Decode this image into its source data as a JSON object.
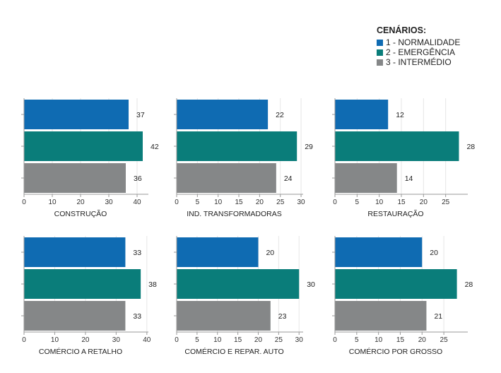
{
  "legend": {
    "title": "CENÁRIOS:",
    "items": [
      {
        "label": "1 - NORMALIDADE",
        "color": "#0f6bb2"
      },
      {
        "label": "2 - EMERGÊNCIA",
        "color": "#0a7d7a"
      },
      {
        "label": "3 - INTERMÉDIO",
        "color": "#858788"
      }
    ]
  },
  "chart_data": [
    {
      "type": "bar",
      "title": "CONSTRUÇÃO",
      "series": [
        {
          "name": "1 - NORMALIDADE",
          "values": [
            37
          ]
        },
        {
          "name": "2 - EMERGÊNCIA",
          "values": [
            42
          ]
        },
        {
          "name": "3 - INTERMÉDIO",
          "values": [
            36
          ]
        }
      ],
      "xlim": [
        0,
        44
      ],
      "xticks": [
        0,
        10,
        20,
        30,
        40
      ]
    },
    {
      "type": "bar",
      "title": "IND. TRANSFORMADORAS",
      "series": [
        {
          "name": "1 - NORMALIDADE",
          "values": [
            22
          ]
        },
        {
          "name": "2 - EMERGÊNCIA",
          "values": [
            29
          ]
        },
        {
          "name": "3 - INTERMÉDIO",
          "values": [
            24
          ]
        }
      ],
      "xlim": [
        0,
        30.5
      ],
      "xticks": [
        0,
        5,
        10,
        15,
        20,
        25,
        30
      ]
    },
    {
      "type": "bar",
      "title": "RESTAURAÇÃO",
      "series": [
        {
          "name": "1 - NORMALIDADE",
          "values": [
            12
          ]
        },
        {
          "name": "2 - EMERGÊNCIA",
          "values": [
            28
          ]
        },
        {
          "name": "3 - INTERMÉDIO",
          "values": [
            14
          ]
        }
      ],
      "xlim": [
        0,
        30
      ],
      "xticks": [
        0,
        5,
        10,
        15,
        20,
        25
      ]
    },
    {
      "type": "bar",
      "title": "COMÉRCIO A RETALHO",
      "series": [
        {
          "name": "1 - NORMALIDADE",
          "values": [
            33
          ]
        },
        {
          "name": "2 - EMERGÊNCIA",
          "values": [
            38
          ]
        },
        {
          "name": "3 - INTERMÉDIO",
          "values": [
            33
          ]
        }
      ],
      "xlim": [
        0,
        40.5
      ],
      "xticks": [
        0,
        10,
        20,
        30,
        40
      ]
    },
    {
      "type": "bar",
      "title": "COMÉRCIO E REPAR. AUTO",
      "series": [
        {
          "name": "1 - NORMALIDADE",
          "values": [
            20
          ]
        },
        {
          "name": "2 - EMERGÊNCIA",
          "values": [
            30
          ]
        },
        {
          "name": "3 - INTERMÉDIO",
          "values": [
            23
          ]
        }
      ],
      "xlim": [
        0,
        31
      ],
      "xticks": [
        0,
        5,
        10,
        15,
        20,
        25,
        30
      ]
    },
    {
      "type": "bar",
      "title": "COMÉRCIO POR GROSSO",
      "series": [
        {
          "name": "1 - NORMALIDADE",
          "values": [
            20
          ]
        },
        {
          "name": "2 - EMERGÊNCIA",
          "values": [
            28
          ]
        },
        {
          "name": "3 - INTERMÉDIO",
          "values": [
            21
          ]
        }
      ],
      "xlim": [
        0,
        30.5
      ],
      "xticks": [
        0,
        5,
        10,
        15,
        20,
        25
      ]
    }
  ]
}
